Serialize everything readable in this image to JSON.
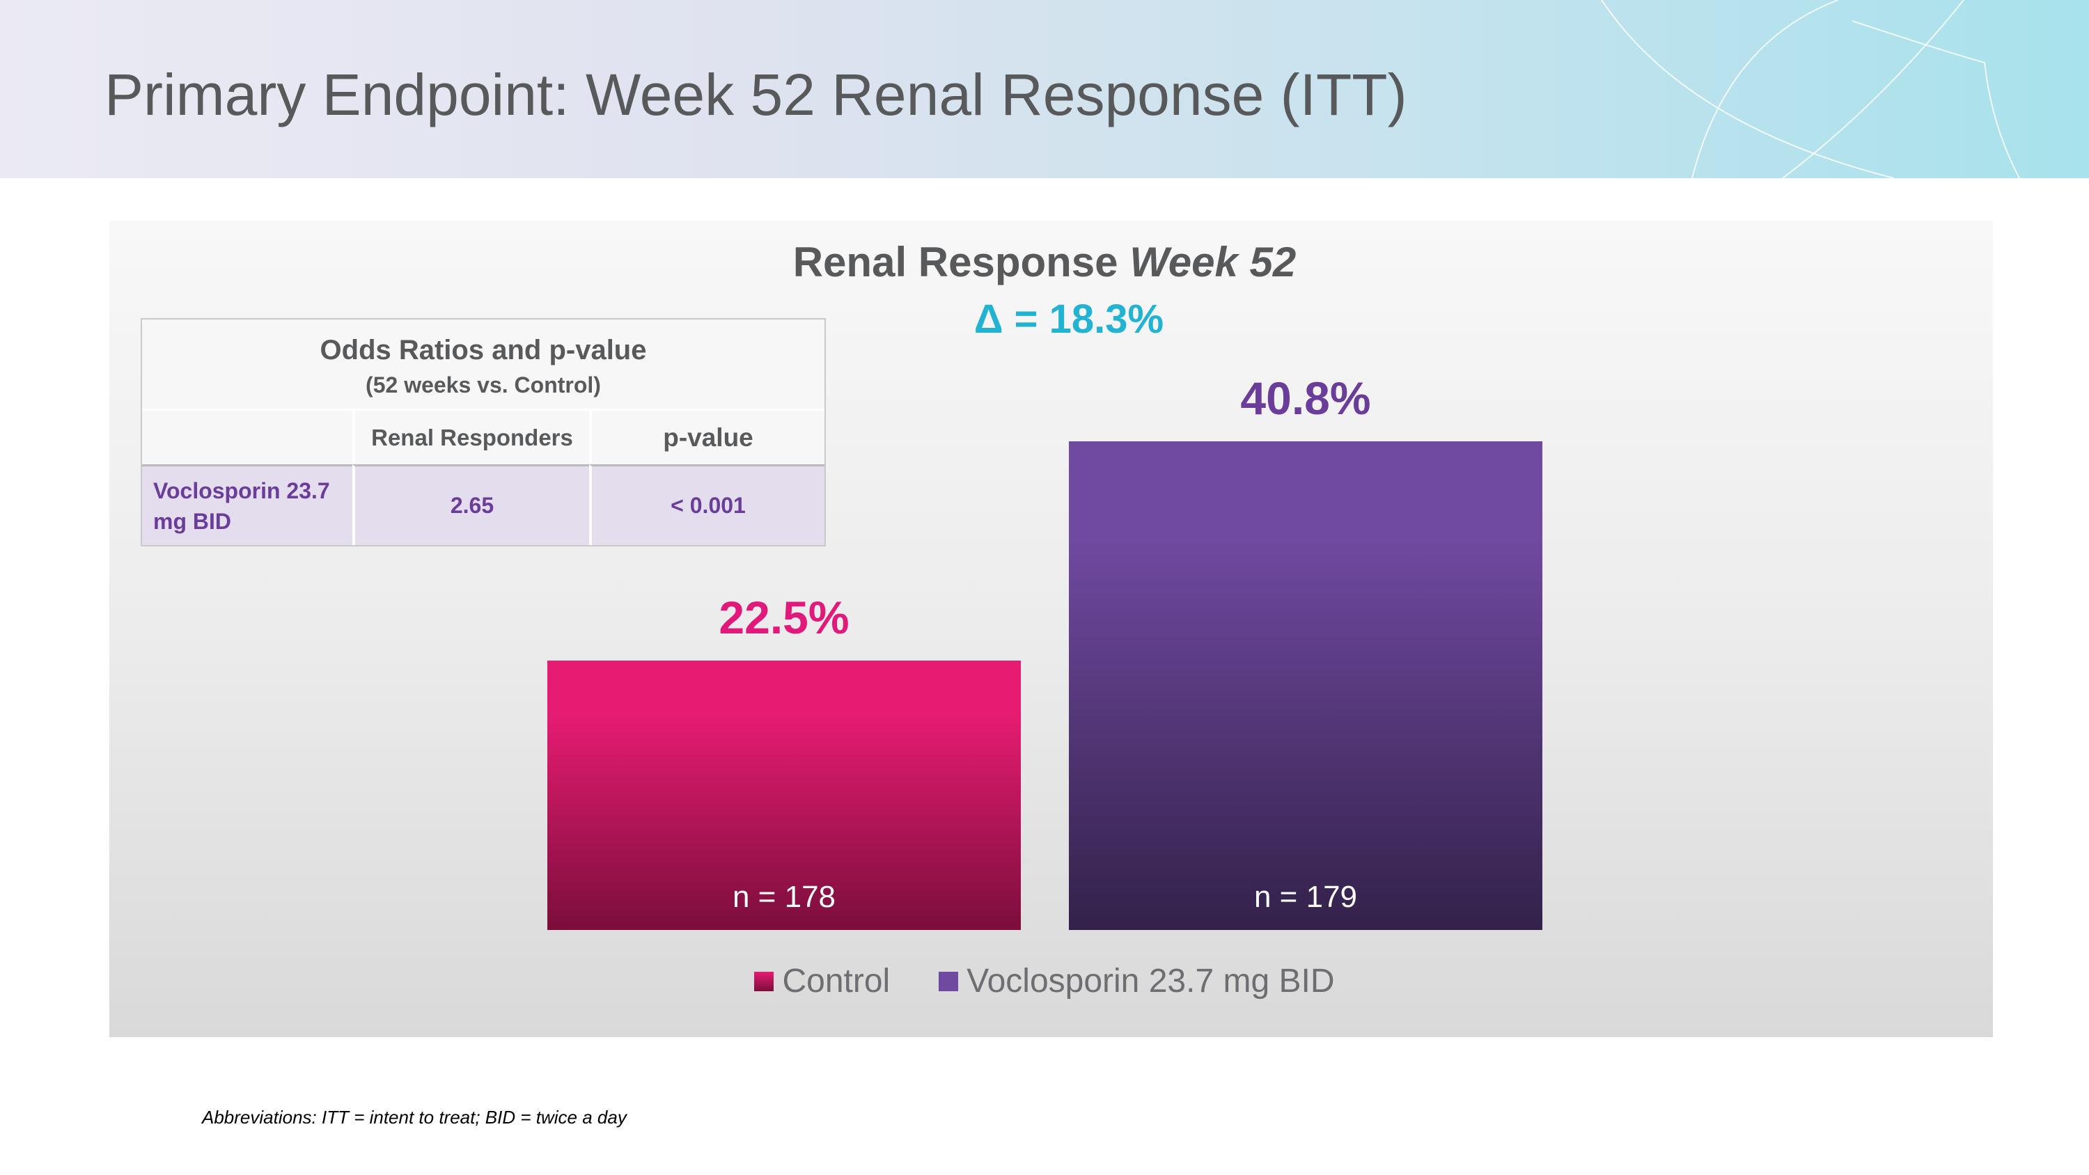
{
  "slide": {
    "title": "Primary Endpoint: Week 52 Renal Response (ITT)",
    "footnote": "Abbreviations: ITT = intent to treat; BID = twice a day"
  },
  "chart_title": {
    "main": "Renal Response ",
    "italic": "Week 52"
  },
  "delta_label": "Δ = 18.3%",
  "odds_table": {
    "title": "Odds Ratios and p-value",
    "subtitle": "(52 weeks vs. Control)",
    "columns": [
      "",
      "Renal Responders",
      "p-value"
    ],
    "rows": [
      {
        "label": "Voclosporin 23.7 mg BID",
        "renal_responders": "2.65",
        "p_value": "< 0.001"
      }
    ]
  },
  "chart_data": {
    "type": "bar",
    "title": "Renal Response Week 52",
    "annotation": "Δ = 18.3%",
    "categories": [
      "Control",
      "Voclosporin 23.7 mg BID"
    ],
    "values": [
      22.5,
      40.8
    ],
    "value_labels": [
      "22.5%",
      "40.8%"
    ],
    "n_labels": [
      "n = 178",
      "n = 179"
    ],
    "unit": "%",
    "ylim": [
      0,
      60
    ],
    "grid": false,
    "legend": "bottom",
    "legend_entries": [
      "Control",
      "Voclosporin 23.7 mg BID"
    ],
    "colors": {
      "control_top": "#e61c72",
      "control_bottom": "#7a0e3b",
      "vcs_top": "#7049a0",
      "vcs_bottom": "#33214a",
      "control_label": "#e0197b",
      "vcs_label": "#6a3d9a"
    }
  }
}
